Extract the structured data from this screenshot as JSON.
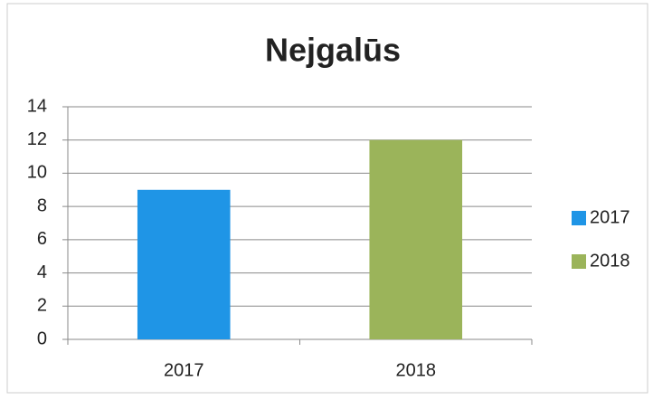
{
  "chart_data": {
    "type": "bar",
    "title": "Nejgalūs",
    "categories": [
      "2017",
      "2018"
    ],
    "values": [
      9,
      12
    ],
    "colors": [
      "#1f95e6",
      "#9bb45a"
    ],
    "ylim": [
      0,
      14
    ],
    "yticks": [
      0,
      2,
      4,
      6,
      8,
      10,
      12,
      14
    ],
    "grid": true,
    "legend": "right"
  }
}
